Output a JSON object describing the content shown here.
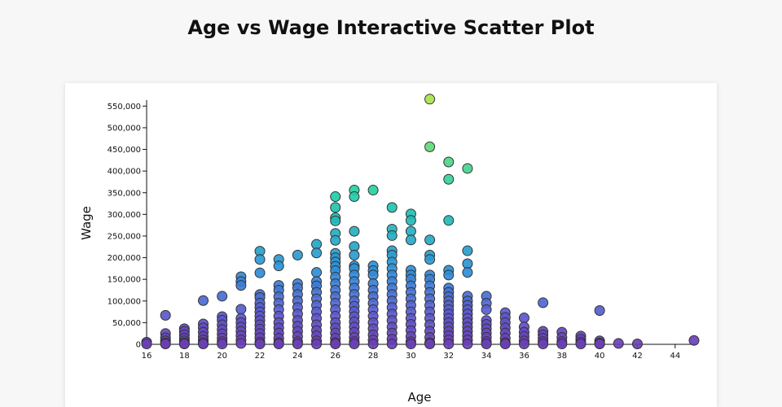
{
  "page": {
    "title": "Age vs Wage Interactive Scatter Plot"
  },
  "chart_data": {
    "type": "scatter",
    "title": "Age vs Wage Interactive Scatter Plot",
    "xlabel": "Age",
    "ylabel": "Wage",
    "xlim": [
      16,
      45
    ],
    "ylim": [
      0,
      560000
    ],
    "x_ticks": [
      16,
      18,
      20,
      22,
      24,
      26,
      28,
      30,
      32,
      34,
      36,
      38,
      40,
      42,
      44
    ],
    "y_ticks": [
      0,
      50000,
      100000,
      150000,
      200000,
      250000,
      300000,
      350000,
      400000,
      450000,
      500000,
      550000
    ],
    "grid": false,
    "legend": "none",
    "color_scale": {
      "by": "wage",
      "low": "#6a3fb5",
      "mid": "#2d8fd8",
      "high": "#a6e34a"
    },
    "points": [
      [
        16,
        5000
      ],
      [
        16,
        1000
      ],
      [
        17,
        67000
      ],
      [
        17,
        25000
      ],
      [
        17,
        15000
      ],
      [
        17,
        8000
      ],
      [
        17,
        3000
      ],
      [
        17,
        1000
      ],
      [
        18,
        36000
      ],
      [
        18,
        30000
      ],
      [
        18,
        22000
      ],
      [
        18,
        14000
      ],
      [
        18,
        8000
      ],
      [
        18,
        3000
      ],
      [
        18,
        1000
      ],
      [
        19,
        101000
      ],
      [
        19,
        47000
      ],
      [
        19,
        38000
      ],
      [
        19,
        28000
      ],
      [
        19,
        18000
      ],
      [
        19,
        10000
      ],
      [
        19,
        4000
      ],
      [
        19,
        1000
      ],
      [
        20,
        111000
      ],
      [
        20,
        64000
      ],
      [
        20,
        56000
      ],
      [
        20,
        45000
      ],
      [
        20,
        34000
      ],
      [
        20,
        24000
      ],
      [
        20,
        14000
      ],
      [
        20,
        6000
      ],
      [
        20,
        1000
      ],
      [
        21,
        156000
      ],
      [
        21,
        145000
      ],
      [
        21,
        136000
      ],
      [
        21,
        81000
      ],
      [
        21,
        60000
      ],
      [
        21,
        50000
      ],
      [
        21,
        40000
      ],
      [
        21,
        30000
      ],
      [
        21,
        20000
      ],
      [
        21,
        10000
      ],
      [
        21,
        2000
      ],
      [
        22,
        215000
      ],
      [
        22,
        196000
      ],
      [
        22,
        165000
      ],
      [
        22,
        115000
      ],
      [
        22,
        108000
      ],
      [
        22,
        95000
      ],
      [
        22,
        85000
      ],
      [
        22,
        75000
      ],
      [
        22,
        65000
      ],
      [
        22,
        55000
      ],
      [
        22,
        45000
      ],
      [
        22,
        35000
      ],
      [
        22,
        25000
      ],
      [
        22,
        15000
      ],
      [
        22,
        5000
      ],
      [
        22,
        1000
      ],
      [
        23,
        196000
      ],
      [
        23,
        181000
      ],
      [
        23,
        136000
      ],
      [
        23,
        125000
      ],
      [
        23,
        110000
      ],
      [
        23,
        95000
      ],
      [
        23,
        80000
      ],
      [
        23,
        65000
      ],
      [
        23,
        50000
      ],
      [
        23,
        38000
      ],
      [
        23,
        26000
      ],
      [
        23,
        14000
      ],
      [
        23,
        4000
      ],
      [
        23,
        1000
      ],
      [
        24,
        206000
      ],
      [
        24,
        140000
      ],
      [
        24,
        130000
      ],
      [
        24,
        115000
      ],
      [
        24,
        100000
      ],
      [
        24,
        85000
      ],
      [
        24,
        70000
      ],
      [
        24,
        55000
      ],
      [
        24,
        42000
      ],
      [
        24,
        30000
      ],
      [
        24,
        18000
      ],
      [
        24,
        6000
      ],
      [
        24,
        1000
      ],
      [
        25,
        231000
      ],
      [
        25,
        211000
      ],
      [
        25,
        166000
      ],
      [
        25,
        145000
      ],
      [
        25,
        135000
      ],
      [
        25,
        120000
      ],
      [
        25,
        105000
      ],
      [
        25,
        90000
      ],
      [
        25,
        75000
      ],
      [
        25,
        60000
      ],
      [
        25,
        45000
      ],
      [
        25,
        32000
      ],
      [
        25,
        20000
      ],
      [
        25,
        8000
      ],
      [
        25,
        1000
      ],
      [
        26,
        341000
      ],
      [
        26,
        316000
      ],
      [
        26,
        292000
      ],
      [
        26,
        285000
      ],
      [
        26,
        256000
      ],
      [
        26,
        240000
      ],
      [
        26,
        210000
      ],
      [
        26,
        200000
      ],
      [
        26,
        190000
      ],
      [
        26,
        180000
      ],
      [
        26,
        170000
      ],
      [
        26,
        155000
      ],
      [
        26,
        140000
      ],
      [
        26,
        125000
      ],
      [
        26,
        110000
      ],
      [
        26,
        95000
      ],
      [
        26,
        80000
      ],
      [
        26,
        65000
      ],
      [
        26,
        50000
      ],
      [
        26,
        38000
      ],
      [
        26,
        26000
      ],
      [
        26,
        14000
      ],
      [
        26,
        4000
      ],
      [
        26,
        1000
      ],
      [
        27,
        356000
      ],
      [
        27,
        341000
      ],
      [
        27,
        261000
      ],
      [
        27,
        226000
      ],
      [
        27,
        206000
      ],
      [
        27,
        181000
      ],
      [
        27,
        175000
      ],
      [
        27,
        160000
      ],
      [
        27,
        145000
      ],
      [
        27,
        130000
      ],
      [
        27,
        115000
      ],
      [
        27,
        100000
      ],
      [
        27,
        88000
      ],
      [
        27,
        76000
      ],
      [
        27,
        64000
      ],
      [
        27,
        52000
      ],
      [
        27,
        40000
      ],
      [
        27,
        28000
      ],
      [
        27,
        16000
      ],
      [
        27,
        6000
      ],
      [
        27,
        1000
      ],
      [
        28,
        356000
      ],
      [
        28,
        181000
      ],
      [
        28,
        170000
      ],
      [
        28,
        160000
      ],
      [
        28,
        140000
      ],
      [
        28,
        125000
      ],
      [
        28,
        110000
      ],
      [
        28,
        95000
      ],
      [
        28,
        80000
      ],
      [
        28,
        65000
      ],
      [
        28,
        50000
      ],
      [
        28,
        36000
      ],
      [
        28,
        22000
      ],
      [
        28,
        10000
      ],
      [
        28,
        1000
      ],
      [
        29,
        316000
      ],
      [
        29,
        266000
      ],
      [
        29,
        251000
      ],
      [
        29,
        216000
      ],
      [
        29,
        206000
      ],
      [
        29,
        190000
      ],
      [
        29,
        175000
      ],
      [
        29,
        160000
      ],
      [
        29,
        145000
      ],
      [
        29,
        130000
      ],
      [
        29,
        115000
      ],
      [
        29,
        100000
      ],
      [
        29,
        85000
      ],
      [
        29,
        70000
      ],
      [
        29,
        55000
      ],
      [
        29,
        40000
      ],
      [
        29,
        26000
      ],
      [
        29,
        12000
      ],
      [
        29,
        1000
      ],
      [
        30,
        301000
      ],
      [
        30,
        286000
      ],
      [
        30,
        261000
      ],
      [
        30,
        241000
      ],
      [
        30,
        171000
      ],
      [
        30,
        160000
      ],
      [
        30,
        150000
      ],
      [
        30,
        135000
      ],
      [
        30,
        120000
      ],
      [
        30,
        105000
      ],
      [
        30,
        90000
      ],
      [
        30,
        75000
      ],
      [
        30,
        60000
      ],
      [
        30,
        46000
      ],
      [
        30,
        32000
      ],
      [
        30,
        18000
      ],
      [
        30,
        6000
      ],
      [
        30,
        1000
      ],
      [
        31,
        566000
      ],
      [
        31,
        456000
      ],
      [
        31,
        241000
      ],
      [
        31,
        206000
      ],
      [
        31,
        196000
      ],
      [
        31,
        160000
      ],
      [
        31,
        150000
      ],
      [
        31,
        135000
      ],
      [
        31,
        120000
      ],
      [
        31,
        105000
      ],
      [
        31,
        90000
      ],
      [
        31,
        75000
      ],
      [
        31,
        60000
      ],
      [
        31,
        45000
      ],
      [
        31,
        30000
      ],
      [
        31,
        16000
      ],
      [
        31,
        4000
      ],
      [
        31,
        1000
      ],
      [
        32,
        421000
      ],
      [
        32,
        381000
      ],
      [
        32,
        286000
      ],
      [
        32,
        171000
      ],
      [
        32,
        160000
      ],
      [
        32,
        130000
      ],
      [
        32,
        120000
      ],
      [
        32,
        110000
      ],
      [
        32,
        100000
      ],
      [
        32,
        90000
      ],
      [
        32,
        80000
      ],
      [
        32,
        70000
      ],
      [
        32,
        60000
      ],
      [
        32,
        50000
      ],
      [
        32,
        40000
      ],
      [
        32,
        30000
      ],
      [
        32,
        20000
      ],
      [
        32,
        10000
      ],
      [
        32,
        1000
      ],
      [
        33,
        406000
      ],
      [
        33,
        216000
      ],
      [
        33,
        186000
      ],
      [
        33,
        166000
      ],
      [
        33,
        111000
      ],
      [
        33,
        100000
      ],
      [
        33,
        90000
      ],
      [
        33,
        80000
      ],
      [
        33,
        70000
      ],
      [
        33,
        60000
      ],
      [
        33,
        50000
      ],
      [
        33,
        40000
      ],
      [
        33,
        30000
      ],
      [
        33,
        20000
      ],
      [
        33,
        10000
      ],
      [
        33,
        1000
      ],
      [
        34,
        111000
      ],
      [
        34,
        95000
      ],
      [
        34,
        80000
      ],
      [
        34,
        55000
      ],
      [
        34,
        46000
      ],
      [
        34,
        36000
      ],
      [
        34,
        26000
      ],
      [
        34,
        16000
      ],
      [
        34,
        6000
      ],
      [
        34,
        1000
      ],
      [
        35,
        73000
      ],
      [
        35,
        62000
      ],
      [
        35,
        50000
      ],
      [
        35,
        38000
      ],
      [
        35,
        26000
      ],
      [
        35,
        14000
      ],
      [
        35,
        4000
      ],
      [
        35,
        1000
      ],
      [
        36,
        61000
      ],
      [
        36,
        40000
      ],
      [
        36,
        28000
      ],
      [
        36,
        18000
      ],
      [
        36,
        8000
      ],
      [
        36,
        1000
      ],
      [
        37,
        96000
      ],
      [
        37,
        30000
      ],
      [
        37,
        22000
      ],
      [
        37,
        14000
      ],
      [
        37,
        6000
      ],
      [
        37,
        1000
      ],
      [
        38,
        28000
      ],
      [
        38,
        16000
      ],
      [
        38,
        6000
      ],
      [
        38,
        1000
      ],
      [
        39,
        19000
      ],
      [
        39,
        12000
      ],
      [
        39,
        5000
      ],
      [
        39,
        1000
      ],
      [
        40,
        78000
      ],
      [
        40,
        8000
      ],
      [
        40,
        3000
      ],
      [
        40,
        1000
      ],
      [
        41,
        2000
      ],
      [
        42,
        1000
      ],
      [
        45,
        9000
      ]
    ]
  }
}
